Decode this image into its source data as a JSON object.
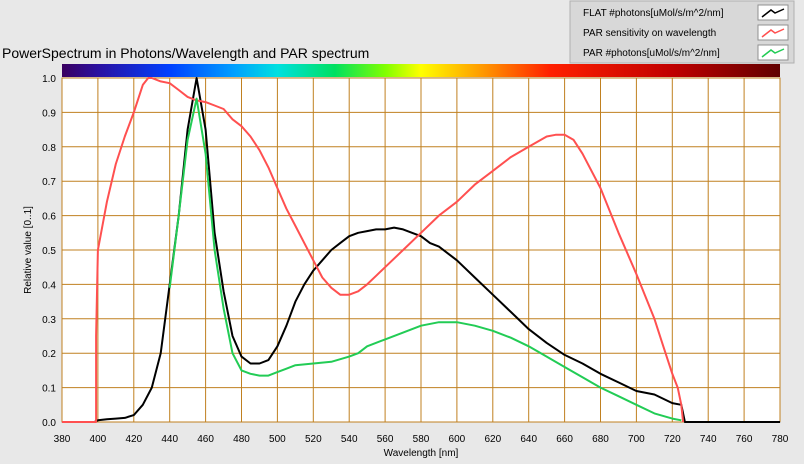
{
  "chart_data": {
    "type": "line",
    "title": "PowerSpectrum in Photons/Wavelength and PAR spectrum",
    "xlabel": "Wavelength [nm]",
    "ylabel": "Relative value [0..1]",
    "xlim": [
      380,
      780
    ],
    "ylim": [
      0,
      1
    ],
    "x_ticks": [
      380,
      400,
      420,
      440,
      460,
      480,
      500,
      520,
      540,
      560,
      580,
      600,
      620,
      640,
      660,
      680,
      700,
      720,
      740,
      760,
      780
    ],
    "y_ticks": [
      0.0,
      0.1,
      0.2,
      0.3,
      0.4,
      0.5,
      0.6,
      0.7,
      0.8,
      0.9,
      1.0
    ],
    "y_tick_labels": [
      "0.0",
      "0.1",
      "0.2",
      "0.3",
      "0.4",
      "0.5",
      "0.6",
      "0.7",
      "0.8",
      "0.9",
      "1.0"
    ],
    "grid": true,
    "legend_position": "top-right",
    "series": [
      {
        "name": "FLAT #photons[uMol/s/m^2/nm]",
        "color": "#000000",
        "points": [
          [
            380,
            0
          ],
          [
            398,
            0
          ],
          [
            400,
            0.005
          ],
          [
            405,
            0.008
          ],
          [
            410,
            0.01
          ],
          [
            415,
            0.012
          ],
          [
            420,
            0.02
          ],
          [
            425,
            0.05
          ],
          [
            430,
            0.1
          ],
          [
            435,
            0.2
          ],
          [
            440,
            0.4
          ],
          [
            445,
            0.6
          ],
          [
            450,
            0.85
          ],
          [
            455,
            1.0
          ],
          [
            460,
            0.85
          ],
          [
            465,
            0.55
          ],
          [
            470,
            0.38
          ],
          [
            475,
            0.25
          ],
          [
            480,
            0.19
          ],
          [
            485,
            0.17
          ],
          [
            490,
            0.17
          ],
          [
            495,
            0.18
          ],
          [
            500,
            0.22
          ],
          [
            505,
            0.28
          ],
          [
            510,
            0.35
          ],
          [
            515,
            0.4
          ],
          [
            520,
            0.44
          ],
          [
            525,
            0.47
          ],
          [
            530,
            0.5
          ],
          [
            535,
            0.52
          ],
          [
            540,
            0.54
          ],
          [
            545,
            0.55
          ],
          [
            550,
            0.555
          ],
          [
            555,
            0.56
          ],
          [
            560,
            0.56
          ],
          [
            565,
            0.565
          ],
          [
            570,
            0.56
          ],
          [
            575,
            0.55
          ],
          [
            580,
            0.54
          ],
          [
            585,
            0.52
          ],
          [
            590,
            0.51
          ],
          [
            595,
            0.49
          ],
          [
            600,
            0.47
          ],
          [
            610,
            0.42
          ],
          [
            620,
            0.37
          ],
          [
            630,
            0.32
          ],
          [
            640,
            0.27
          ],
          [
            650,
            0.23
          ],
          [
            660,
            0.195
          ],
          [
            670,
            0.17
          ],
          [
            680,
            0.14
          ],
          [
            690,
            0.115
          ],
          [
            700,
            0.09
          ],
          [
            710,
            0.08
          ],
          [
            720,
            0.055
          ],
          [
            725,
            0.05
          ],
          [
            727,
            0
          ],
          [
            780,
            0
          ]
        ]
      },
      {
        "name": "PAR sensitivity on wavelength",
        "color": "#ff5050",
        "points": [
          [
            380,
            0
          ],
          [
            399,
            0
          ],
          [
            399,
            0.25
          ],
          [
            400,
            0.5
          ],
          [
            405,
            0.64
          ],
          [
            410,
            0.75
          ],
          [
            415,
            0.83
          ],
          [
            420,
            0.9
          ],
          [
            425,
            0.98
          ],
          [
            428,
            1.0
          ],
          [
            430,
            1.0
          ],
          [
            435,
            0.99
          ],
          [
            440,
            0.985
          ],
          [
            445,
            0.965
          ],
          [
            450,
            0.945
          ],
          [
            455,
            0.935
          ],
          [
            460,
            0.93
          ],
          [
            465,
            0.92
          ],
          [
            470,
            0.91
          ],
          [
            475,
            0.88
          ],
          [
            480,
            0.86
          ],
          [
            485,
            0.83
          ],
          [
            490,
            0.79
          ],
          [
            495,
            0.74
          ],
          [
            500,
            0.68
          ],
          [
            505,
            0.62
          ],
          [
            510,
            0.57
          ],
          [
            515,
            0.52
          ],
          [
            520,
            0.47
          ],
          [
            525,
            0.42
          ],
          [
            530,
            0.39
          ],
          [
            535,
            0.37
          ],
          [
            540,
            0.37
          ],
          [
            545,
            0.38
          ],
          [
            550,
            0.4
          ],
          [
            555,
            0.425
          ],
          [
            560,
            0.45
          ],
          [
            570,
            0.5
          ],
          [
            580,
            0.55
          ],
          [
            590,
            0.6
          ],
          [
            600,
            0.64
          ],
          [
            610,
            0.69
          ],
          [
            620,
            0.73
          ],
          [
            630,
            0.77
          ],
          [
            640,
            0.8
          ],
          [
            650,
            0.83
          ],
          [
            655,
            0.835
          ],
          [
            660,
            0.835
          ],
          [
            665,
            0.82
          ],
          [
            670,
            0.78
          ],
          [
            680,
            0.68
          ],
          [
            690,
            0.55
          ],
          [
            700,
            0.43
          ],
          [
            710,
            0.3
          ],
          [
            715,
            0.22
          ],
          [
            720,
            0.14
          ],
          [
            723,
            0.1
          ],
          [
            725,
            0.05
          ],
          [
            726,
            0
          ]
        ]
      },
      {
        "name": "PAR #photons[uMol/s/m^2/nm]",
        "color": "#22cc55",
        "points": [
          [
            440,
            0.39
          ],
          [
            445,
            0.6
          ],
          [
            450,
            0.82
          ],
          [
            455,
            0.94
          ],
          [
            460,
            0.78
          ],
          [
            465,
            0.5
          ],
          [
            470,
            0.33
          ],
          [
            475,
            0.2
          ],
          [
            480,
            0.15
          ],
          [
            485,
            0.14
          ],
          [
            490,
            0.135
          ],
          [
            495,
            0.135
          ],
          [
            500,
            0.145
          ],
          [
            505,
            0.155
          ],
          [
            510,
            0.165
          ],
          [
            520,
            0.17
          ],
          [
            530,
            0.175
          ],
          [
            540,
            0.19
          ],
          [
            545,
            0.2
          ],
          [
            550,
            0.22
          ],
          [
            560,
            0.24
          ],
          [
            570,
            0.26
          ],
          [
            580,
            0.28
          ],
          [
            590,
            0.29
          ],
          [
            600,
            0.29
          ],
          [
            610,
            0.28
          ],
          [
            620,
            0.265
          ],
          [
            630,
            0.245
          ],
          [
            640,
            0.22
          ],
          [
            650,
            0.19
          ],
          [
            660,
            0.16
          ],
          [
            670,
            0.13
          ],
          [
            680,
            0.1
          ],
          [
            690,
            0.075
          ],
          [
            700,
            0.05
          ],
          [
            710,
            0.025
          ],
          [
            720,
            0.01
          ],
          [
            725,
            0.005
          ]
        ]
      }
    ]
  },
  "legend": {
    "entries": [
      {
        "label": "FLAT #photons[uMol/s/m^2/nm]",
        "color": "#000000"
      },
      {
        "label": "PAR sensitivity on wavelength",
        "color": "#ff5050"
      },
      {
        "label": "PAR #photons[uMol/s/m^2/nm]",
        "color": "#22cc55"
      }
    ]
  },
  "colors": {
    "plot_background": "#ffffff",
    "grid": "#c08020",
    "page_background": "#e8e8e8"
  }
}
